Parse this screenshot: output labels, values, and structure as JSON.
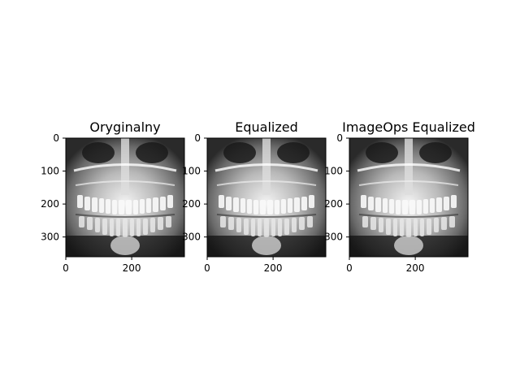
{
  "chart_data": [
    {
      "type": "image",
      "title": "Oryginalny",
      "image": "dental panoramic x-ray (grayscale)",
      "xlim": [
        0,
        360
      ],
      "ylim": [
        360,
        0
      ],
      "xticks": [
        0,
        200
      ],
      "yticks": [
        0,
        100,
        200,
        300
      ]
    },
    {
      "type": "image",
      "title": "Equalized",
      "image": "dental panoramic x-ray (grayscale, histogram equalized)",
      "xlim": [
        0,
        360
      ],
      "ylim": [
        360,
        0
      ],
      "xticks": [
        0,
        200
      ],
      "yticks": [
        0,
        100,
        200,
        300
      ]
    },
    {
      "type": "image",
      "title": "ImageOps Equalized",
      "image": "dental panoramic x-ray (grayscale, ImageOps equalized)",
      "xlim": [
        0,
        360
      ],
      "ylim": [
        360,
        0
      ],
      "xticks": [
        0,
        200
      ],
      "yticks": [
        0,
        100,
        200,
        300
      ]
    }
  ],
  "colors": {
    "frame": "#000000",
    "background": "#ffffff"
  }
}
